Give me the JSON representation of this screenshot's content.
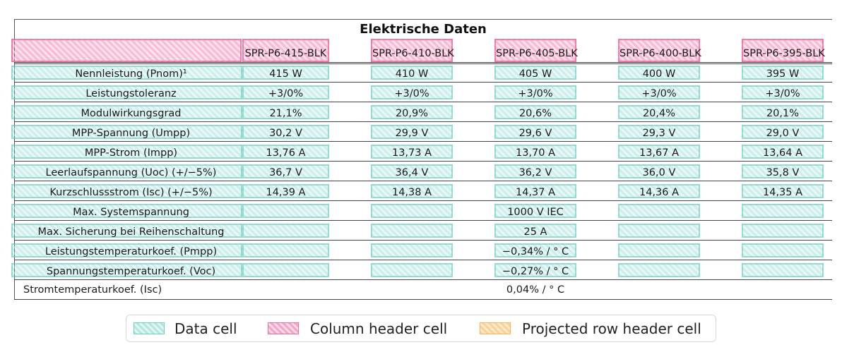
{
  "table": {
    "title": "Elektrische Daten",
    "columns": [
      "SPR-P6-415-BLK",
      "SPR-P6-410-BLK",
      "SPR-P6-405-BLK",
      "SPR-P6-400-BLK",
      "SPR-P6-395-BLK"
    ],
    "rows": [
      {
        "label": "Nennleistung (Pnom)¹",
        "values": [
          "415 W",
          "410 W",
          "405 W",
          "400 W",
          "395 W"
        ]
      },
      {
        "label": "Leistungstoleranz",
        "values": [
          "+3/0%",
          "+3/0%",
          "+3/0%",
          "+3/0%",
          "+3/0%"
        ]
      },
      {
        "label": "Modulwirkungsgrad",
        "values": [
          "21,1%",
          "20,9%",
          "20,6%",
          "20,4%",
          "20,1%"
        ]
      },
      {
        "label": "MPP-Spannung (Umpp)",
        "values": [
          "30,2 V",
          "29,9 V",
          "29,6 V",
          "29,3 V",
          "29,0 V"
        ]
      },
      {
        "label": "MPP-Strom (Impp)",
        "values": [
          "13,76 A",
          "13,73 A",
          "13,70 A",
          "13,67 A",
          "13,64 A"
        ]
      },
      {
        "label": "Leerlaufspannung (Uoc) (+/−5%)",
        "values": [
          "36,7 V",
          "36,4 V",
          "36,2 V",
          "36,0 V",
          "35,8 V"
        ]
      },
      {
        "label": "Kurzschlussstrom (Isc) (+/−5%)",
        "values": [
          "14,39 A",
          "14,38 A",
          "14,37 A",
          "14,36 A",
          "14,35 A"
        ]
      },
      {
        "label": "Max. Systemspannung",
        "values": [
          "",
          "",
          "1000 V IEC",
          "",
          ""
        ]
      },
      {
        "label": "Max. Sicherung bei Reihenschaltung",
        "values": [
          "",
          "",
          "25 A",
          "",
          ""
        ]
      },
      {
        "label": "Leistungstemperaturkoef. (Pmpp)",
        "values": [
          "",
          "",
          "−0,34% / ° C",
          "",
          ""
        ]
      },
      {
        "label": "Spannungstemperaturkoef. (Voc)",
        "values": [
          "",
          "",
          "−0,27% / ° C",
          "",
          ""
        ]
      },
      {
        "label": "Stromtemperaturkoef. (Isc)",
        "values": [
          "",
          "",
          "0,04% / ° C",
          "",
          ""
        ]
      }
    ]
  },
  "legend": {
    "items": [
      {
        "label": "Data cell",
        "color": "#5ac8b9"
      },
      {
        "label": "Column header cell",
        "color": "#f05a96"
      },
      {
        "label": "Projected row header cell",
        "color": "#faaa46"
      }
    ]
  }
}
